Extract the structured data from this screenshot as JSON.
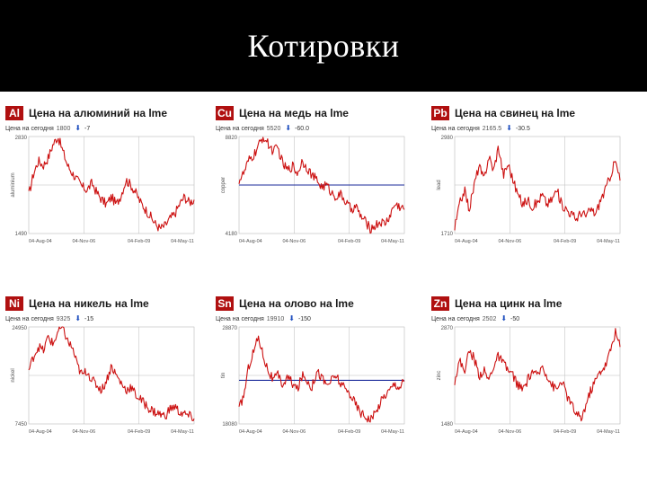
{
  "header": {
    "title": "Котировки"
  },
  "colors": {
    "badge": "#b01010",
    "line": "#cc1111",
    "refline": "#1a2a9a",
    "grid": "#bbbbbb"
  },
  "panels": [
    {
      "symbol": "Al",
      "title": "Цена на алюминий на lme",
      "today_label": "Цена на сегодня",
      "today_value": "1800",
      "change": "-7",
      "chart_data": {
        "type": "line",
        "title": "Цена на алюминий на lme",
        "ylabel": "aluminium",
        "y_top_label": "2830",
        "y_bottom_label": "1490",
        "x_labels": [
          "04-Aug-04",
          "04-Nov-06",
          "04-Feb-09",
          "04-May-11"
        ],
        "ylim": [
          1490,
          2830
        ],
        "reference": null,
        "points": [
          0.4,
          0.62,
          0.75,
          0.7,
          0.78,
          0.92,
          1.0,
          0.85,
          0.7,
          0.62,
          0.55,
          0.48,
          0.45,
          0.52,
          0.42,
          0.35,
          0.3,
          0.38,
          0.3,
          0.4,
          0.55,
          0.5,
          0.42,
          0.32,
          0.25,
          0.18,
          0.1,
          0.05,
          0.08,
          0.15,
          0.2,
          0.3,
          0.38,
          0.32,
          0.35
        ]
      }
    },
    {
      "symbol": "Cu",
      "title": "Цена на медь на lme",
      "today_label": "Цена на сегодня",
      "today_value": "5520",
      "change": "-60.0",
      "chart_data": {
        "type": "line",
        "title": "Цена на медь на lme",
        "ylabel": "copper",
        "y_top_label": "8820",
        "y_bottom_label": "4180",
        "x_labels": [
          "04-Aug-04",
          "04-Nov-06",
          "04-Feb-09",
          "04-May-11"
        ],
        "ylim": [
          4180,
          8820
        ],
        "reference": 0.5,
        "points": [
          0.55,
          0.62,
          0.75,
          0.8,
          0.9,
          1.0,
          0.92,
          0.85,
          0.88,
          0.72,
          0.65,
          0.7,
          0.62,
          0.75,
          0.68,
          0.6,
          0.55,
          0.48,
          0.5,
          0.42,
          0.38,
          0.4,
          0.32,
          0.25,
          0.28,
          0.18,
          0.12,
          0.05,
          0.08,
          0.12,
          0.1,
          0.18,
          0.3,
          0.28,
          0.25
        ]
      }
    },
    {
      "symbol": "Pb",
      "title": "Цена на свинец на lme",
      "today_label": "Цена на сегодня",
      "today_value": "2165.5",
      "change": "-30.5",
      "chart_data": {
        "type": "line",
        "title": "Цена на свинец на lme",
        "ylabel": "lead",
        "y_top_label": "2980",
        "y_bottom_label": "1710",
        "x_labels": [
          "04-Aug-04",
          "04-Nov-06",
          "04-Feb-09",
          "04-May-11"
        ],
        "ylim": [
          1710,
          2980
        ],
        "reference": null,
        "points": [
          0.05,
          0.3,
          0.45,
          0.25,
          0.5,
          0.7,
          0.55,
          0.8,
          0.65,
          0.9,
          0.6,
          0.72,
          0.55,
          0.4,
          0.3,
          0.35,
          0.28,
          0.32,
          0.4,
          0.3,
          0.35,
          0.45,
          0.3,
          0.25,
          0.2,
          0.15,
          0.22,
          0.18,
          0.25,
          0.2,
          0.35,
          0.45,
          0.6,
          0.75,
          0.55
        ]
      }
    },
    {
      "symbol": "Ni",
      "title": "Цена на никель на lme",
      "today_label": "Цена на сегодня",
      "today_value": "9325",
      "change": "-15",
      "chart_data": {
        "type": "line",
        "title": "Цена на никель на lme",
        "ylabel": "nickel",
        "y_top_label": "24950",
        "y_bottom_label": "7450",
        "x_labels": [
          "04-Aug-04",
          "04-Nov-06",
          "04-Feb-09",
          "04-May-11"
        ],
        "ylim": [
          7450,
          24950
        ],
        "reference": null,
        "points": [
          0.55,
          0.7,
          0.8,
          0.75,
          0.9,
          0.82,
          0.95,
          1.0,
          0.85,
          0.78,
          0.6,
          0.5,
          0.55,
          0.45,
          0.4,
          0.35,
          0.45,
          0.6,
          0.5,
          0.42,
          0.35,
          0.38,
          0.3,
          0.25,
          0.2,
          0.15,
          0.12,
          0.1,
          0.08,
          0.15,
          0.18,
          0.12,
          0.1,
          0.08,
          0.06
        ]
      }
    },
    {
      "symbol": "Sn",
      "title": "Цена на олово на lme",
      "today_label": "Цена на сегодня",
      "today_value": "19910",
      "change": "-150",
      "chart_data": {
        "type": "line",
        "title": "Цена на олово на lme",
        "ylabel": "tin",
        "y_top_label": "28870",
        "y_bottom_label": "18080",
        "x_labels": [
          "04-Aug-04",
          "04-Nov-06",
          "04-Feb-09",
          "04-May-11"
        ],
        "ylim": [
          18080,
          28870
        ],
        "reference": 0.45,
        "points": [
          0.15,
          0.3,
          0.6,
          0.75,
          0.9,
          0.7,
          0.55,
          0.45,
          0.5,
          0.4,
          0.48,
          0.42,
          0.35,
          0.5,
          0.45,
          0.38,
          0.55,
          0.48,
          0.4,
          0.45,
          0.5,
          0.4,
          0.35,
          0.3,
          0.2,
          0.12,
          0.08,
          0.05,
          0.1,
          0.22,
          0.3,
          0.35,
          0.42,
          0.38,
          0.45
        ]
      }
    },
    {
      "symbol": "Zn",
      "title": "Цена на цинк на lme",
      "today_label": "Цена на сегодня",
      "today_value": "2502",
      "change": "-50",
      "chart_data": {
        "type": "line",
        "title": "Цена на цинк на lme",
        "ylabel": "zinc",
        "y_top_label": "2870",
        "y_bottom_label": "1480",
        "x_labels": [
          "04-Aug-04",
          "04-Nov-06",
          "04-Feb-09",
          "04-May-11"
        ],
        "ylim": [
          1480,
          2870
        ],
        "reference": null,
        "points": [
          0.45,
          0.65,
          0.55,
          0.75,
          0.68,
          0.5,
          0.55,
          0.45,
          0.6,
          0.7,
          0.62,
          0.55,
          0.5,
          0.4,
          0.35,
          0.45,
          0.55,
          0.48,
          0.6,
          0.5,
          0.4,
          0.35,
          0.45,
          0.3,
          0.2,
          0.1,
          0.05,
          0.2,
          0.35,
          0.45,
          0.55,
          0.6,
          0.75,
          0.95,
          0.8
        ]
      }
    }
  ]
}
